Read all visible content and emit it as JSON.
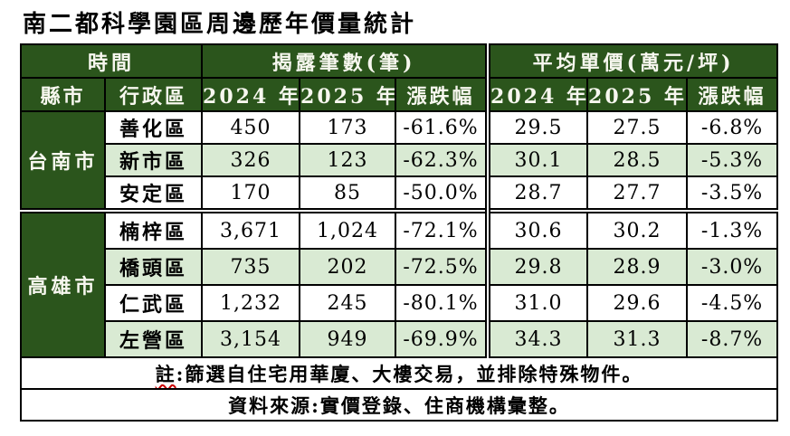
{
  "title": "南二都科學園區周邊歷年價量統計",
  "colors": {
    "header_green": "#2b551c",
    "row_alt_green": "#d9ead3",
    "border": "#000000",
    "squiggle_red": "#cc0000"
  },
  "table": {
    "header_groups": [
      {
        "label": "時間"
      },
      {
        "label": "揭露筆數(筆)"
      },
      {
        "label": "平均單價(萬元/坪)"
      }
    ],
    "columns": [
      "縣市",
      "行政區",
      "2024 年",
      "2025 年",
      "漲跌幅",
      "2024 年",
      "2025 年",
      "漲跌幅"
    ],
    "groups": [
      {
        "city": "台南市",
        "rows": [
          {
            "district": "善化區",
            "count_2024": "450",
            "count_2025": "173",
            "count_change": "-61.6%",
            "price_2024": "29.5",
            "price_2025": "27.5",
            "price_change": "-6.8%"
          },
          {
            "district": "新市區",
            "count_2024": "326",
            "count_2025": "123",
            "count_change": "-62.3%",
            "price_2024": "30.1",
            "price_2025": "28.5",
            "price_change": "-5.3%"
          },
          {
            "district": "安定區",
            "count_2024": "170",
            "count_2025": "85",
            "count_change": "-50.0%",
            "price_2024": "28.7",
            "price_2025": "27.7",
            "price_change": "-3.5%"
          }
        ]
      },
      {
        "city": "高雄市",
        "rows": [
          {
            "district": "楠梓區",
            "count_2024": "3,671",
            "count_2025": "1,024",
            "count_change": "-72.1%",
            "price_2024": "30.6",
            "price_2025": "30.2",
            "price_change": "-1.3%"
          },
          {
            "district": "橋頭區",
            "count_2024": "735",
            "count_2025": "202",
            "count_change": "-72.5%",
            "price_2024": "29.8",
            "price_2025": "28.9",
            "price_change": "-3.0%"
          },
          {
            "district": "仁武區",
            "count_2024": "1,232",
            "count_2025": "245",
            "count_change": "-80.1%",
            "price_2024": "31.0",
            "price_2025": "29.6",
            "price_change": "-4.5%"
          },
          {
            "district": "左營區",
            "count_2024": "3,154",
            "count_2025": "949",
            "count_change": "-69.9%",
            "price_2024": "34.3",
            "price_2025": "31.3",
            "price_change": "-8.7%"
          }
        ]
      }
    ],
    "note_marked": "註",
    "note_rest": ":篩選自住宅用華廈、大樓交易，並排除特殊物件。",
    "source": "資料來源:實價登錄、住商機構彙整。"
  }
}
